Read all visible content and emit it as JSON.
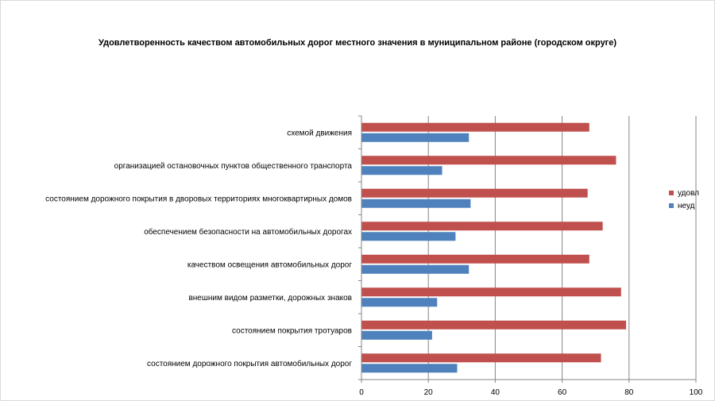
{
  "chart_data": {
    "type": "bar",
    "orientation": "horizontal",
    "title": "Удовлетворенность качеством автомобильных дорог местного значения в муниципальном районе (городском округе)",
    "categories": [
      "схемой движения",
      "организацией остановочных пунктов общественного транспорта",
      "состоянием дорожного покрытия в дворовых территориях многоквартирных домов",
      "обеспечением безопасности на автомобильных дорогах",
      "качеством освещения автомобильных дорог",
      "внешним видом разметки, дорожных знаков",
      "состоянием покрытия тротуаров",
      "состоянием дорожного покрытия автомобильных дорог"
    ],
    "series": [
      {
        "name": "удовл",
        "color": "#c0504d",
        "values": [
          68,
          76,
          67.5,
          72,
          68,
          77.5,
          79,
          71.5
        ]
      },
      {
        "name": "неуд",
        "color": "#4f81bd",
        "values": [
          32,
          24,
          32.5,
          28,
          32,
          22.5,
          21,
          28.5
        ]
      }
    ],
    "xlim": [
      0,
      100
    ],
    "xticks": [
      0,
      20,
      40,
      60,
      80,
      100
    ],
    "grid": true,
    "legend": "right"
  }
}
